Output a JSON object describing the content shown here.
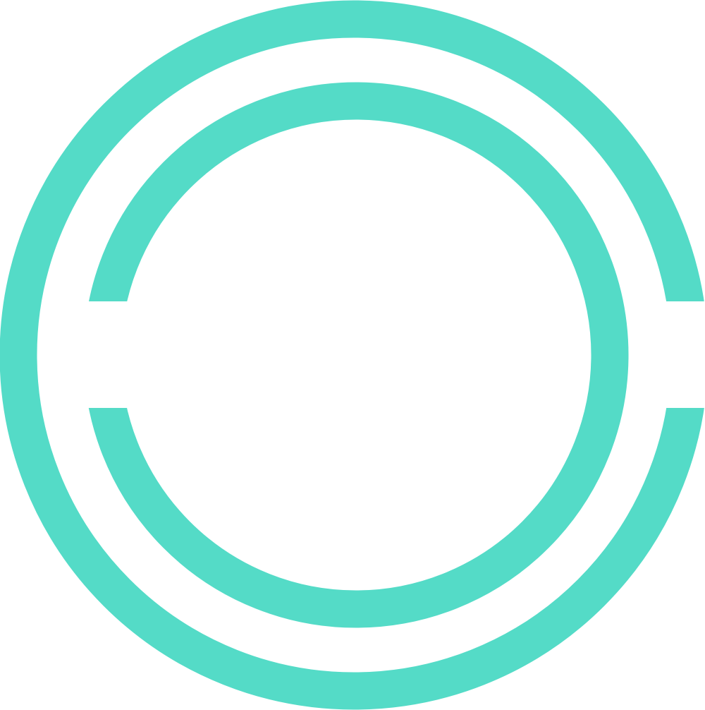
{
  "logo": {
    "name": "concentric-broken-rings-logo",
    "color": "#54DBC7",
    "background": "#ffffff"
  }
}
